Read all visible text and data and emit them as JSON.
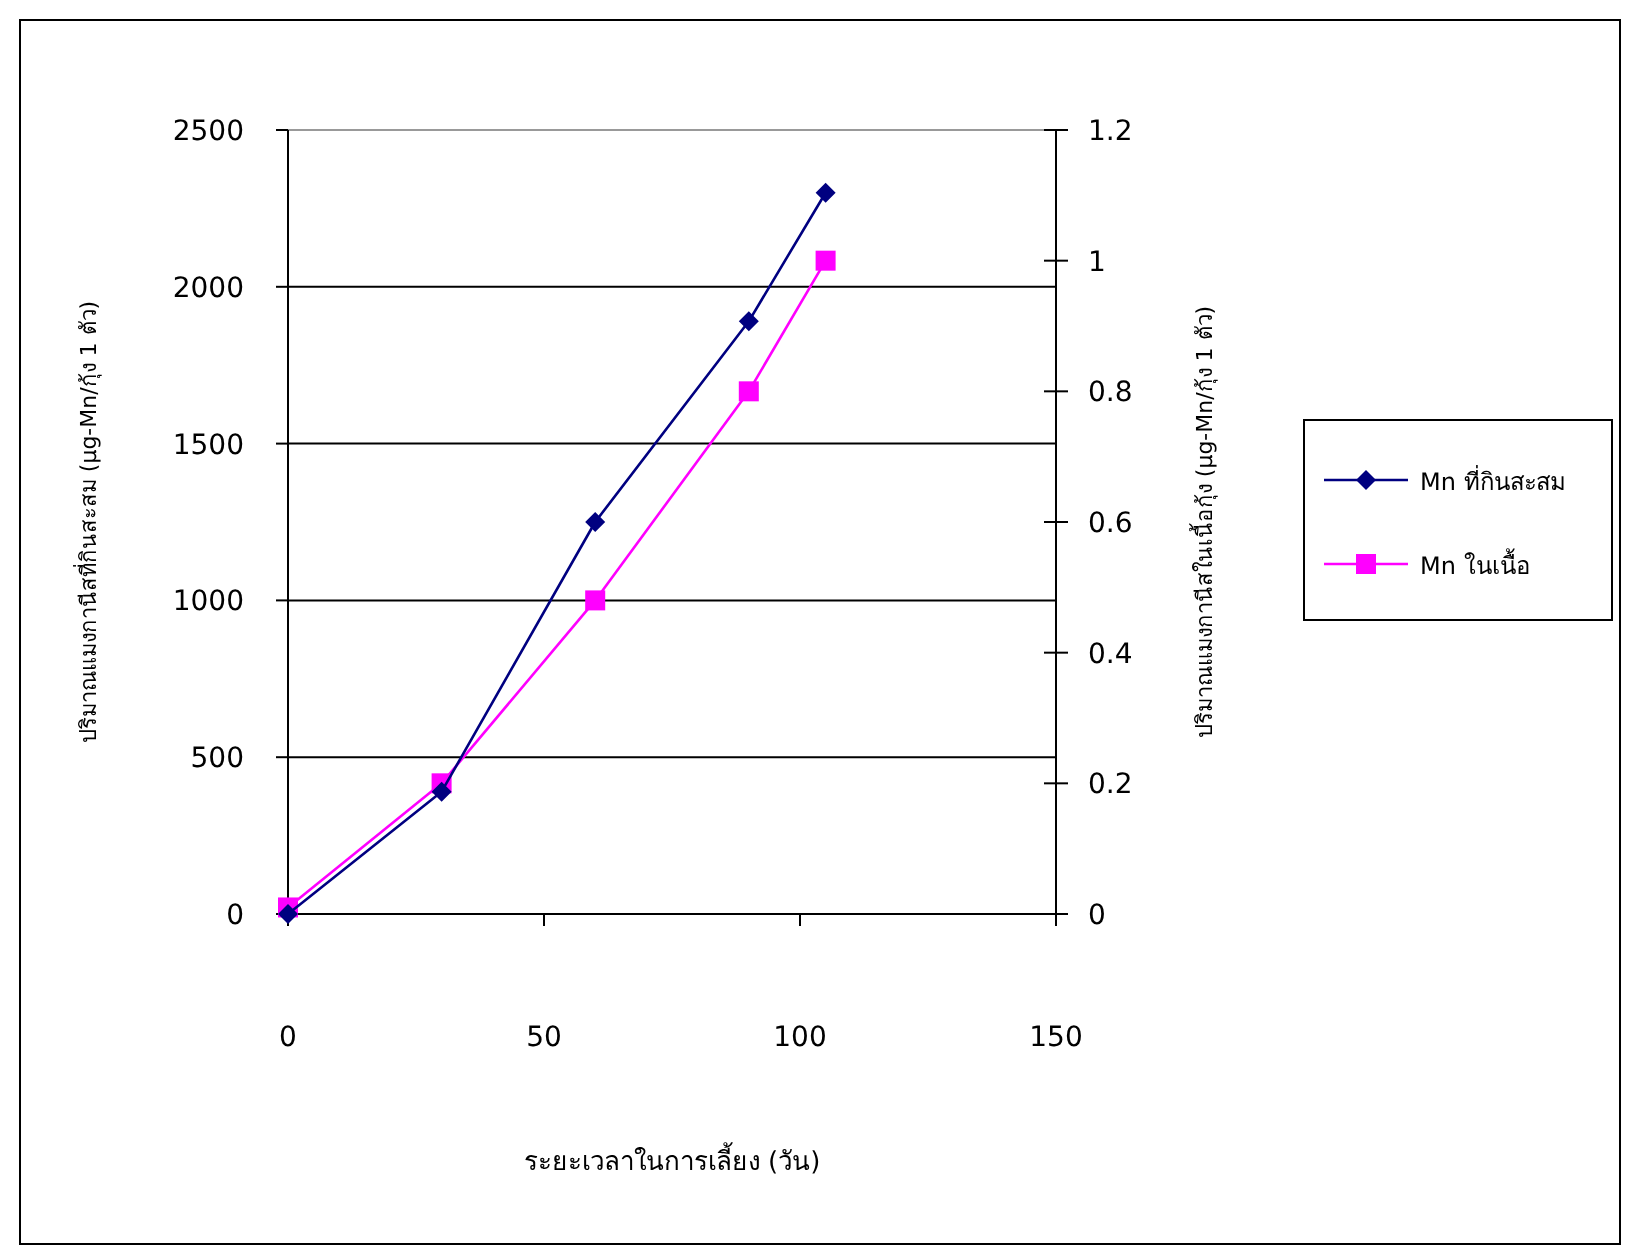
{
  "chart_data": {
    "type": "line",
    "xlabel": "ระยะเวลาในการเลี้ยง (วัน)",
    "ylabel": "ปริมาณแมงกานีสที่กินสะสม (µg-Mn/กุ้ง 1 ตัว)",
    "y2label": "ปริมาณแมงกานีสในเนื้อกุ้ง (µg-Mn/กุ้ง 1 ตัว)",
    "x": [
      0,
      30,
      60,
      90,
      105
    ],
    "series": [
      {
        "name": "Mn ที่กินสะสม",
        "color": "#000080",
        "marker": "diamond",
        "values": [
          0,
          390,
          1250,
          1890,
          2300
        ]
      },
      {
        "name": "Mn ในเนื้อ",
        "color": "#ff00ff",
        "marker": "square",
        "axis": "y2",
        "values": [
          0.01,
          0.2,
          0.48,
          0.8,
          1.0
        ]
      }
    ],
    "xlim": [
      0,
      150
    ],
    "xticks": [
      0,
      50,
      100,
      150
    ],
    "ylim": [
      0,
      2500
    ],
    "yticks": [
      0,
      500,
      1000,
      1500,
      2000,
      2500
    ],
    "y2lim": [
      0,
      1.2
    ],
    "y2ticks": [
      0,
      0.2,
      0.4,
      0.6,
      0.8,
      1,
      1.2
    ],
    "grid": "y",
    "legend": "right",
    "line_style": "solid"
  }
}
